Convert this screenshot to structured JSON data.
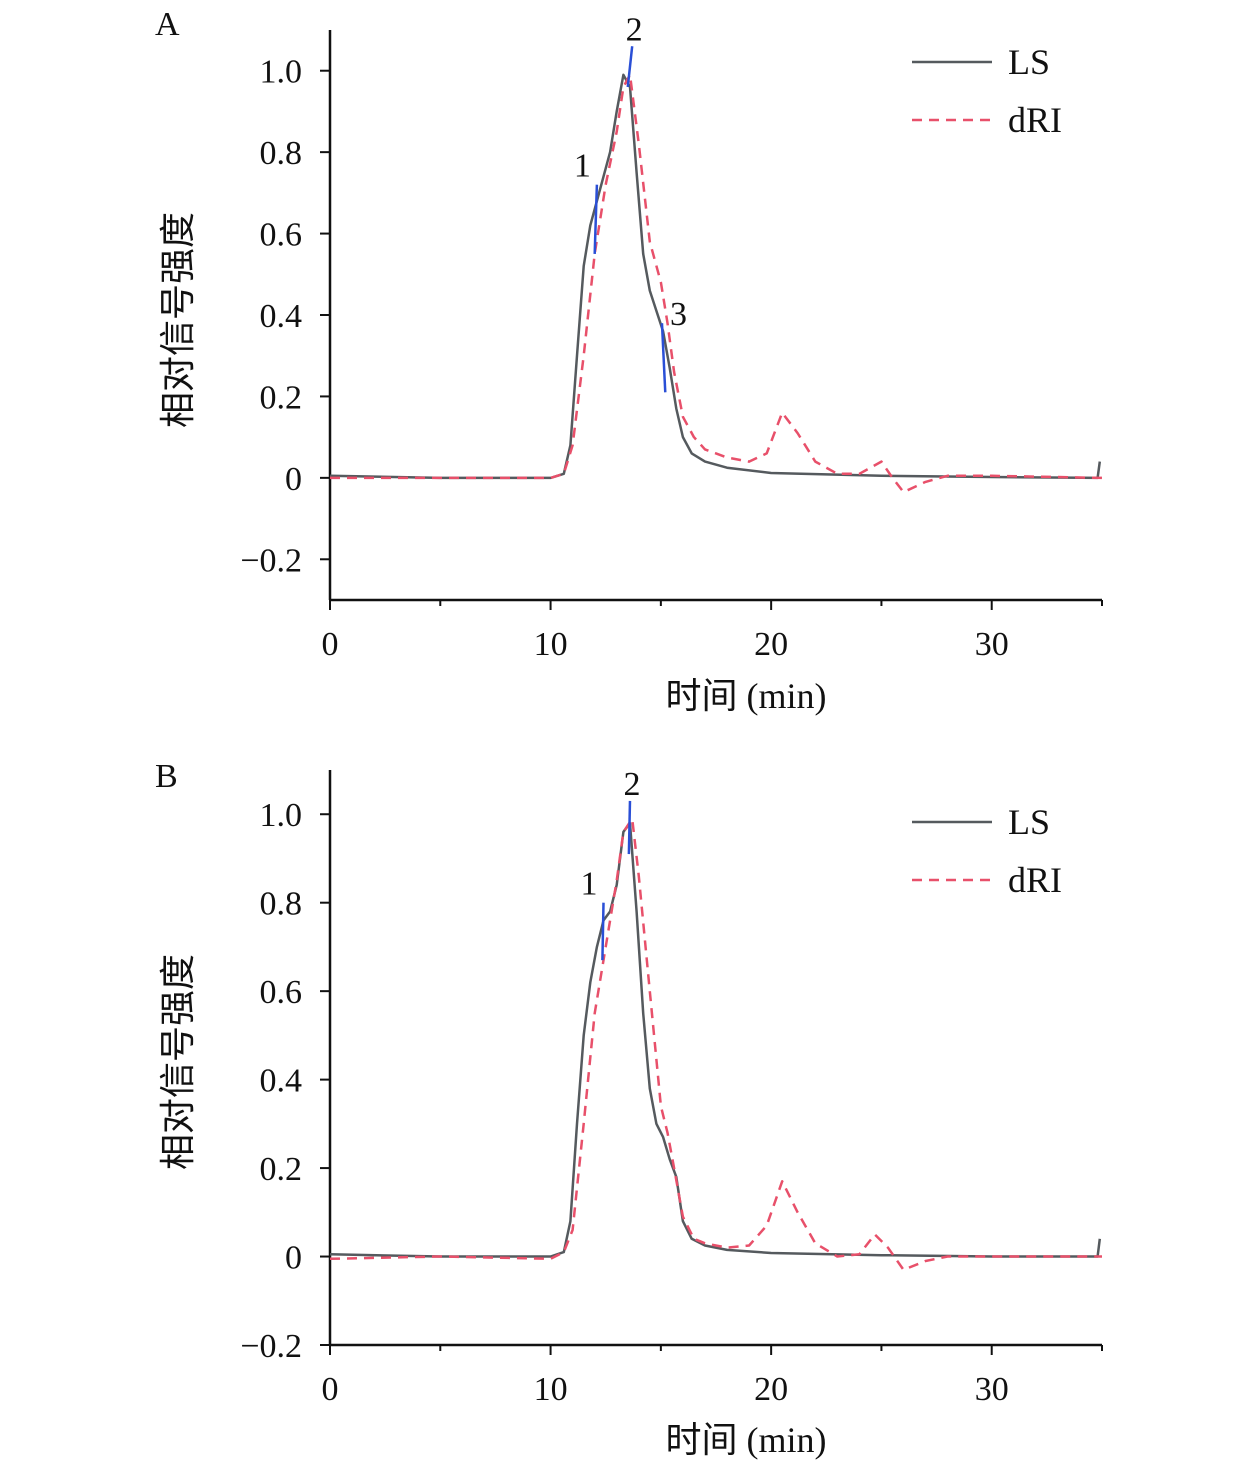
{
  "colors": {
    "ls": "#555a5e",
    "dri": "#e8506a",
    "marker": "#2a4fd6",
    "axis": "#111111"
  },
  "chart_data": [
    {
      "panel_label": "A",
      "type": "line",
      "xlabel": "时间 (min)",
      "ylabel": "相对信号强度",
      "xlim": [
        0,
        35
      ],
      "ylim": [
        -0.3,
        1.1
      ],
      "x_ticks": [
        0,
        10,
        20,
        30
      ],
      "x_tick_labels": [
        "0",
        "10",
        "20",
        "30"
      ],
      "x_minor_ticks": [
        5,
        15,
        25,
        35
      ],
      "y_ticks": [
        -0.2,
        0,
        0.2,
        0.4,
        0.6,
        0.8,
        1.0
      ],
      "y_tick_labels": [
        "−0.2",
        "0",
        "0.2",
        "0.4",
        "0.6",
        "0.8",
        "1.0"
      ],
      "legend": [
        "LS",
        "dRI"
      ],
      "legend_position": "top-right",
      "series": [
        {
          "name": "LS",
          "style": "solid",
          "x": [
            0,
            5,
            10,
            10.6,
            10.9,
            11.2,
            11.5,
            11.8,
            12.1,
            12.4,
            12.7,
            13.0,
            13.3,
            13.6,
            13.9,
            14.2,
            14.5,
            14.8,
            15.1,
            15.4,
            15.7,
            16.0,
            16.4,
            17,
            18,
            20,
            25,
            30,
            34.8,
            34.9
          ],
          "y": [
            0.005,
            0.0,
            0.0,
            0.01,
            0.08,
            0.3,
            0.52,
            0.62,
            0.68,
            0.74,
            0.8,
            0.9,
            0.99,
            0.96,
            0.75,
            0.55,
            0.46,
            0.41,
            0.36,
            0.27,
            0.17,
            0.1,
            0.06,
            0.04,
            0.025,
            0.012,
            0.005,
            0.002,
            0.0,
            0.04
          ]
        },
        {
          "name": "dRI",
          "style": "dashed",
          "x": [
            0,
            5,
            10,
            10.6,
            11.0,
            11.5,
            12.0,
            12.5,
            13.0,
            13.3,
            13.6,
            14.0,
            14.5,
            15.0,
            15.3,
            15.6,
            16.0,
            16.5,
            17,
            18,
            19,
            19.8,
            20.5,
            21.2,
            22,
            23,
            24,
            25,
            25.5,
            26,
            27,
            28,
            30,
            35
          ],
          "y": [
            0.0,
            0.0,
            0.0,
            0.01,
            0.08,
            0.3,
            0.55,
            0.72,
            0.85,
            0.96,
            0.99,
            0.82,
            0.58,
            0.48,
            0.38,
            0.26,
            0.15,
            0.1,
            0.07,
            0.05,
            0.04,
            0.06,
            0.16,
            0.11,
            0.04,
            0.01,
            0.01,
            0.04,
            0.0,
            -0.035,
            -0.01,
            0.005,
            0.005,
            0.0
          ]
        }
      ],
      "markers": [
        {
          "label": "1",
          "x1": 12.0,
          "y1": 0.55,
          "x2": 12.1,
          "y2": 0.72
        },
        {
          "label": "2",
          "x1": 13.5,
          "y1": 0.96,
          "x2": 13.7,
          "y2": 1.06
        },
        {
          "label": "3",
          "x1": 15.05,
          "y1": 0.38,
          "x2": 15.2,
          "y2": 0.21
        }
      ]
    },
    {
      "panel_label": "B",
      "type": "line",
      "xlabel": "时间 (min)",
      "ylabel": "相对信号强度",
      "xlim": [
        0,
        35
      ],
      "ylim": [
        -0.2,
        1.1
      ],
      "x_ticks": [
        0,
        10,
        20,
        30
      ],
      "x_tick_labels": [
        "0",
        "10",
        "20",
        "30"
      ],
      "x_minor_ticks": [
        5,
        15,
        25,
        35
      ],
      "y_ticks": [
        -0.2,
        0,
        0.2,
        0.4,
        0.6,
        0.8,
        1.0
      ],
      "y_tick_labels": [
        "−0.2",
        "0",
        "0.2",
        "0.4",
        "0.6",
        "0.8",
        "1.0"
      ],
      "legend": [
        "LS",
        "dRI"
      ],
      "legend_position": "top-right",
      "series": [
        {
          "name": "LS",
          "style": "solid",
          "x": [
            0,
            5,
            10,
            10.6,
            10.9,
            11.2,
            11.5,
            11.8,
            12.1,
            12.4,
            12.7,
            13.0,
            13.3,
            13.6,
            13.9,
            14.2,
            14.5,
            14.8,
            15.1,
            15.4,
            15.7,
            16.0,
            16.4,
            17,
            18,
            20,
            25,
            30,
            34.8,
            34.9
          ],
          "y": [
            0.005,
            0.0,
            0.0,
            0.01,
            0.08,
            0.3,
            0.5,
            0.62,
            0.7,
            0.76,
            0.78,
            0.84,
            0.96,
            0.98,
            0.78,
            0.55,
            0.38,
            0.3,
            0.27,
            0.22,
            0.18,
            0.08,
            0.04,
            0.025,
            0.015,
            0.008,
            0.003,
            0.0,
            0.0,
            0.04
          ]
        },
        {
          "name": "dRI",
          "style": "dashed",
          "x": [
            0,
            5,
            10,
            10.6,
            11.0,
            11.5,
            12.0,
            12.5,
            13.0,
            13.3,
            13.7,
            14.0,
            14.5,
            15.0,
            15.3,
            15.6,
            16.0,
            16.5,
            17,
            18,
            19,
            19.8,
            20.5,
            21.2,
            22,
            23,
            24,
            24.7,
            25.3,
            26,
            27,
            28,
            30,
            35
          ],
          "y": [
            -0.005,
            0.0,
            -0.005,
            0.01,
            0.06,
            0.3,
            0.55,
            0.7,
            0.85,
            0.96,
            0.99,
            0.86,
            0.6,
            0.34,
            0.28,
            0.2,
            0.09,
            0.04,
            0.03,
            0.02,
            0.025,
            0.07,
            0.17,
            0.1,
            0.03,
            0.0,
            0.005,
            0.05,
            0.02,
            -0.03,
            -0.01,
            0.0,
            0.0,
            0.0
          ]
        }
      ],
      "markers": [
        {
          "label": "1",
          "x1": 12.35,
          "y1": 0.67,
          "x2": 12.4,
          "y2": 0.8
        },
        {
          "label": "2",
          "x1": 13.55,
          "y1": 0.91,
          "x2": 13.6,
          "y2": 1.03
        }
      ]
    }
  ]
}
